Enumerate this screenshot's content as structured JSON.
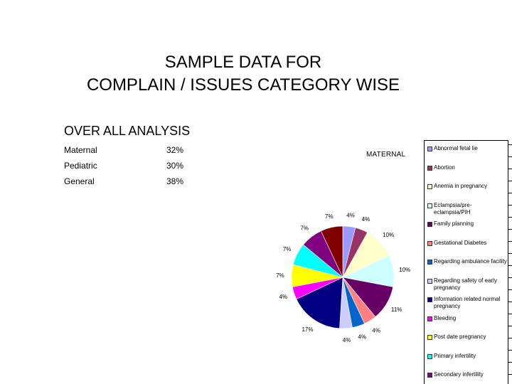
{
  "slide": {
    "title_line1": "SAMPLE DATA FOR",
    "title_line2": "COMPLAIN / ISSUES CATEGORY WISE"
  },
  "analysis": {
    "heading": "OVER ALL ANALYSIS",
    "rows": [
      {
        "category": "Maternal",
        "percent": "32%"
      },
      {
        "category": "Pediatric",
        "percent": "30%"
      },
      {
        "category": "General",
        "percent": "38%"
      }
    ]
  },
  "chart_data": {
    "type": "pie",
    "title": "MATERNAL",
    "legend_position": "right",
    "slices": [
      {
        "label": "Abnormal fetal lie",
        "value": 4,
        "display": "4%",
        "color": "#9999ff"
      },
      {
        "label": "Abortion",
        "value": 4,
        "display": "4%",
        "color": "#993366"
      },
      {
        "label": "Anemia in pregnancy",
        "value": 10,
        "display": "10%",
        "color": "#ffffcc"
      },
      {
        "label": "Eclampsia/pre-eclampsia/PIH",
        "value": 10,
        "display": "10%",
        "color": "#ccffff"
      },
      {
        "label": "Family planning",
        "value": 11,
        "display": "11%",
        "color": "#660066"
      },
      {
        "label": "Gestational Diabetes",
        "value": 4,
        "display": "4%",
        "color": "#ff8080"
      },
      {
        "label": "Regarding ambulance facility",
        "value": 4,
        "display": "4%",
        "color": "#0066cc"
      },
      {
        "label": "Regarding safety of early pregnancy",
        "value": 4,
        "display": "4%",
        "color": "#ccccff"
      },
      {
        "label": "Information related normal pregnancy",
        "value": 17,
        "display": "17%",
        "color": "#000080"
      },
      {
        "label": "Bleeding",
        "value": 4,
        "display": "4%",
        "color": "#ff00ff"
      },
      {
        "label": "Post date pregnancy",
        "value": 7,
        "display": "7%",
        "color": "#ffff00"
      },
      {
        "label": "Primary infertility",
        "value": 7,
        "display": "7%",
        "color": "#00ffff"
      },
      {
        "label": "Secondary infertility",
        "value": 7,
        "display": "7%",
        "color": "#800080"
      },
      {
        "label": "",
        "value": 7,
        "display": "7%",
        "color": "#800000"
      }
    ]
  }
}
